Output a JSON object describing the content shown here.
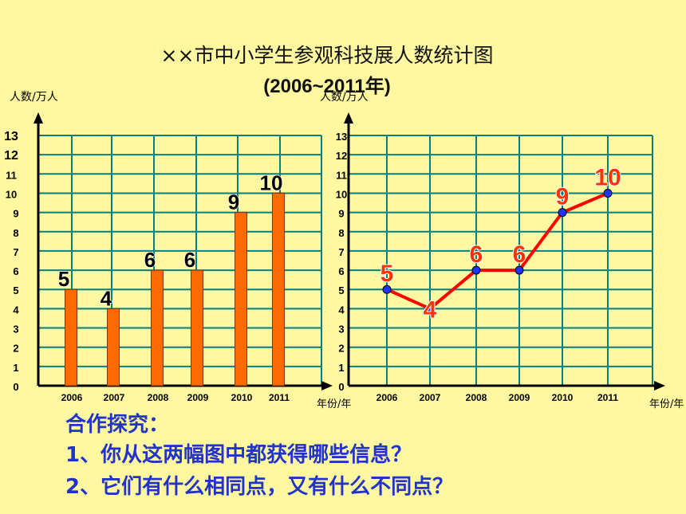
{
  "title": "××市中小学生参观科技展人数统计图",
  "subtitle": "(2006~2011年)",
  "chart_data": [
    {
      "type": "bar",
      "categories": [
        "2006",
        "2007",
        "2008",
        "2009",
        "2010",
        "2011"
      ],
      "values": [
        5,
        4,
        6,
        6,
        9,
        10
      ],
      "ylabel": "人数/万人",
      "xlabel": "年份/年",
      "yticks": [
        0,
        1,
        2,
        3,
        4,
        5,
        6,
        7,
        8,
        9,
        10,
        11,
        12,
        13
      ],
      "ylim": [
        0,
        13
      ],
      "grid": true,
      "color": "#FF6A00"
    },
    {
      "type": "line",
      "categories": [
        "2006",
        "2007",
        "2008",
        "2009",
        "2010",
        "2011"
      ],
      "values": [
        5,
        4,
        6,
        6,
        9,
        10
      ],
      "ylabel": "人数/万人",
      "xlabel": "年份/年",
      "yticks": [
        0,
        1,
        2,
        3,
        4,
        5,
        6,
        7,
        8,
        9,
        10,
        11,
        12,
        13
      ],
      "ylim": [
        0,
        13
      ],
      "grid": true,
      "line_color": "#FF0000",
      "marker_color": "#2233FF"
    }
  ],
  "questions": {
    "heading": "合作探究：",
    "q1": "1、你从这两幅图中都获得哪些信息？",
    "q2": "2、它们有什么相同点，又有什么不同点？"
  },
  "colors": {
    "background": "#FFF8A0",
    "grid": "#008080",
    "label_red": "#FF3300",
    "question_blue": "#2233CC"
  }
}
